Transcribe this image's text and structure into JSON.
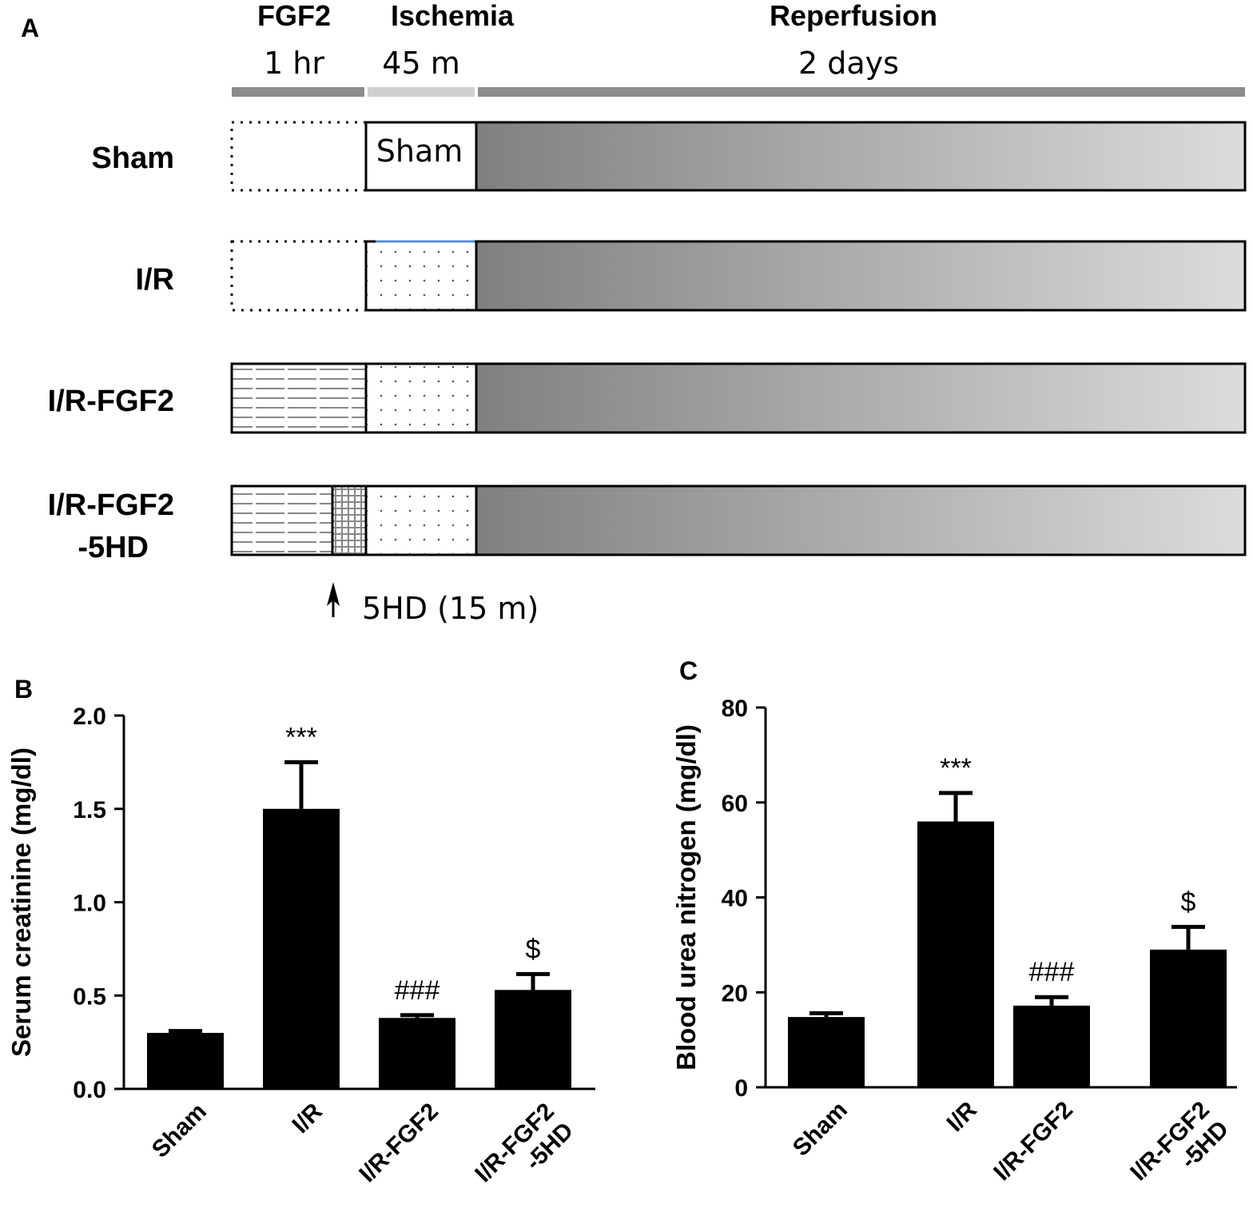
{
  "panel_a": {
    "label": "A",
    "phases": [
      {
        "title": "FGF2",
        "duration": "1 hr"
      },
      {
        "title": "Ischemia",
        "duration": "45 m"
      },
      {
        "title": "Reperfusion",
        "duration": "2 days"
      }
    ],
    "groups": [
      {
        "line1": "Sham",
        "line2": "",
        "box_text": "Sham",
        "pretreatment": "none",
        "ischemia": "sham"
      },
      {
        "line1": "I/R",
        "line2": "",
        "box_text": "",
        "pretreatment": "none",
        "ischemia": "dotted"
      },
      {
        "line1": "I/R-FGF2",
        "line2": "",
        "box_text": "",
        "pretreatment": "fgf2",
        "ischemia": "dotted"
      },
      {
        "line1": "I/R-FGF2",
        "line2": "-5HD",
        "box_text": "",
        "pretreatment": "fgf2-5hd",
        "ischemia": "dotted"
      }
    ],
    "annotation": "5HD (15 m)"
  },
  "chart_data": [
    {
      "panel": "B",
      "type": "bar",
      "categories": [
        [
          "Sham"
        ],
        [
          "I/R"
        ],
        [
          "I/R-FGF2"
        ],
        [
          "I/R-FGF2",
          "-5HD"
        ]
      ],
      "values": [
        0.3,
        1.5,
        0.38,
        0.53
      ],
      "errors": [
        0.01,
        0.25,
        0.015,
        0.085
      ],
      "significance": [
        "",
        "***",
        "###",
        "$"
      ],
      "ylabel": "Serum creatinine (mg/dl)",
      "ylim": [
        0,
        2.0
      ],
      "yticks": [
        "0.0",
        "0.5",
        "1.0",
        "1.5",
        "2.0"
      ],
      "bar_color": "#000000"
    },
    {
      "panel": "C",
      "type": "bar",
      "categories": [
        [
          "Sham"
        ],
        [
          "I/R"
        ],
        [
          "I/R-FGF2"
        ],
        [
          "I/R-FGF2",
          "-5HD"
        ]
      ],
      "values": [
        14.8,
        56,
        17.2,
        29
      ],
      "errors": [
        0.8,
        6,
        1.8,
        4.8
      ],
      "significance": [
        "",
        "***",
        "###",
        "$"
      ],
      "ylabel": "Blood urea nitrogen (mg/dl)",
      "ylim": [
        0,
        80
      ],
      "yticks": [
        "0",
        "20",
        "40",
        "60",
        "80"
      ],
      "bar_color": "#000000"
    }
  ]
}
